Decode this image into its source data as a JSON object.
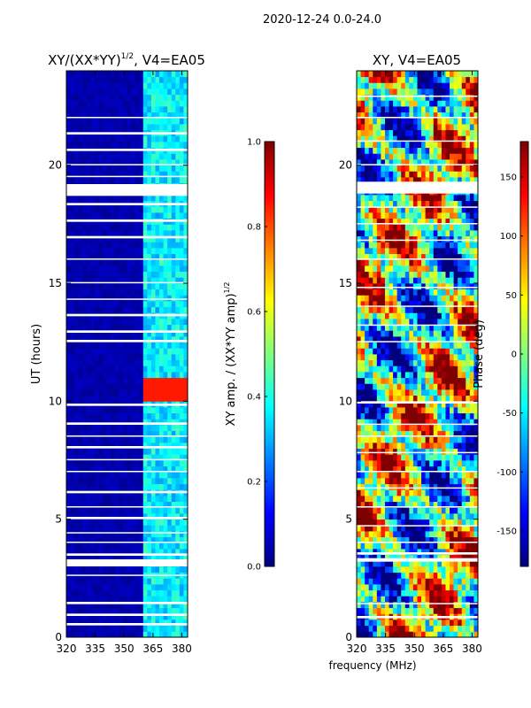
{
  "figure": {
    "suptitle": "2020-12-24 0.0-24.0",
    "shared_xlabel": "frequency (MHz)"
  },
  "colors": {
    "jet_stops": [
      "#00007f",
      "#0000ff",
      "#007fff",
      "#00ffff",
      "#7fff7f",
      "#ffff00",
      "#ff7f00",
      "#ff0000",
      "#7f0000"
    ],
    "gap": "#ffffff",
    "axis": "#000000"
  },
  "chart_data": [
    {
      "type": "heatmap",
      "title": "XY/(XX*YY)1/2, V4=EA05",
      "title_main": "XY/(XX*YY)",
      "title_sup": "1/2",
      "title_tail": ", V4=EA05",
      "xlabel": "",
      "ylabel": "UT (hours)",
      "xlim": [
        320,
        383
      ],
      "ylim": [
        0,
        24
      ],
      "xticks": [
        "320",
        "335",
        "350",
        "365",
        "380"
      ],
      "yticks": [
        "0",
        "5",
        "10",
        "15",
        "20"
      ],
      "colorbar": {
        "label": "XY amp. / (XX*YY amp)1/2",
        "label_main": "XY amp. / (XX*YY amp)",
        "label_sup": "1/2",
        "range": [
          0,
          1
        ],
        "ticks": [
          "0.0",
          "0.2",
          "0.4",
          "0.6",
          "0.8",
          "1.0"
        ]
      },
      "bright_band_mhz": [
        361,
        383
      ],
      "hotspot": {
        "mhz": [
          361,
          382
        ],
        "ut": [
          9.9,
          10.8
        ],
        "value": 0.85
      },
      "gaps_ut": [
        [
          0.5,
          0.6
        ],
        [
          0.9,
          1.0
        ],
        [
          1.4,
          1.5
        ],
        [
          2.6,
          2.65
        ],
        [
          3.0,
          3.3
        ],
        [
          3.45,
          3.55
        ],
        [
          4.0,
          4.05
        ],
        [
          4.4,
          4.45
        ],
        [
          5.0,
          5.1
        ],
        [
          5.5,
          5.55
        ],
        [
          6.1,
          6.2
        ],
        [
          7.0,
          7.05
        ],
        [
          7.5,
          7.55
        ],
        [
          8.0,
          8.1
        ],
        [
          8.5,
          8.55
        ],
        [
          9.0,
          9.1
        ],
        [
          9.8,
          9.9
        ],
        [
          12.5,
          12.6
        ],
        [
          12.9,
          13.0
        ],
        [
          13.6,
          13.7
        ],
        [
          14.3,
          14.35
        ],
        [
          15.0,
          15.05
        ],
        [
          16.0,
          16.05
        ],
        [
          16.9,
          17.0
        ],
        [
          17.6,
          17.7
        ],
        [
          18.3,
          18.4
        ],
        [
          18.7,
          19.2
        ],
        [
          19.5,
          19.55
        ],
        [
          20.0,
          20.05
        ],
        [
          20.6,
          20.7
        ],
        [
          21.3,
          21.4
        ],
        [
          22.0,
          22.05
        ]
      ]
    },
    {
      "type": "heatmap",
      "title": "XY, V4=EA05",
      "xlabel": "frequency (MHz)",
      "ylabel": "",
      "xlim": [
        320,
        383
      ],
      "ylim": [
        0,
        24
      ],
      "xticks": [
        "320",
        "335",
        "350",
        "365",
        "380"
      ],
      "yticks": [
        "0",
        "5",
        "10",
        "15",
        "20"
      ],
      "colorbar": {
        "label": "Phase (deg)",
        "range": [
          -180,
          180
        ],
        "ticks": [
          "-150",
          "-100",
          "-50",
          "0",
          "50",
          "100",
          "150"
        ]
      },
      "gaps_ut": [
        [
          0.8,
          0.9
        ],
        [
          1.4,
          1.45
        ],
        [
          3.2,
          3.35
        ],
        [
          3.5,
          3.6
        ],
        [
          4.0,
          4.05
        ],
        [
          4.7,
          4.75
        ],
        [
          5.5,
          5.55
        ],
        [
          6.3,
          6.35
        ],
        [
          7.0,
          7.05
        ],
        [
          7.8,
          7.85
        ],
        [
          8.5,
          8.55
        ],
        [
          9.0,
          9.05
        ],
        [
          9.9,
          10.0
        ],
        [
          12.5,
          12.55
        ],
        [
          13.2,
          13.25
        ],
        [
          14.0,
          14.05
        ],
        [
          14.8,
          14.85
        ],
        [
          16.0,
          16.05
        ],
        [
          16.8,
          16.85
        ],
        [
          17.5,
          17.55
        ],
        [
          18.2,
          18.25
        ],
        [
          18.8,
          19.3
        ],
        [
          20.0,
          20.05
        ],
        [
          21.0,
          21.05
        ],
        [
          22.0,
          22.05
        ],
        [
          22.9,
          22.95
        ]
      ]
    }
  ]
}
